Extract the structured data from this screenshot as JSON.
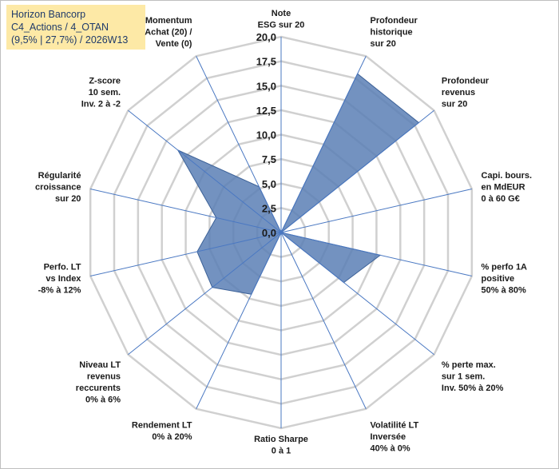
{
  "title": {
    "line1": "Horizon Bancorp",
    "line2": "C4_Actions / 4_OTAN",
    "line3": "(9,5% | 27,7%) / 2026W13"
  },
  "chart_data": {
    "type": "radar",
    "r_range": [
      0,
      20
    ],
    "ticks": [
      "0,0",
      "2,5",
      "5,0",
      "7,5",
      "10,0",
      "12,5",
      "15,0",
      "17,5",
      "20,0"
    ],
    "tick_values": [
      0,
      2.5,
      5,
      7.5,
      10,
      12.5,
      15,
      17.5,
      20
    ],
    "grid": true,
    "colors": {
      "fill": "#5a7fb5",
      "edge": "#3d6298",
      "grid": "#d0d0d0",
      "spoke": "#4a78c2"
    },
    "axes": [
      {
        "label": [
          "Note",
          "ESG sur 20"
        ],
        "value": 0
      },
      {
        "label": [
          "Profondeur",
          "historique",
          "sur 20"
        ],
        "value": 18
      },
      {
        "label": [
          "Profondeur",
          "revenus",
          "sur 20"
        ],
        "value": 18
      },
      {
        "label": [
          "Capi. bours.",
          "en MdEUR",
          "0 à 60 G€"
        ],
        "value": 0
      },
      {
        "label": [
          "% perfo 1A",
          "positive",
          "50% à 80%"
        ],
        "value": 10.4
      },
      {
        "label": [
          "% perte max.",
          "sur 1 sem.",
          "Inv. 50% à 20%"
        ],
        "value": 8.2
      },
      {
        "label": [
          "Volatilité LT",
          "Inversée",
          "40% à 0%"
        ],
        "value": 0
      },
      {
        "label": [
          "Ratio Sharpe",
          "0 à 1"
        ],
        "value": 0
      },
      {
        "label": [
          "Rendement LT",
          "0% à 20%"
        ],
        "value": 7.0
      },
      {
        "label": [
          "Niveau LT",
          "revenus",
          "reccurents",
          "0% à 6%"
        ],
        "value": 9.0
      },
      {
        "label": [
          "Perfo. LT",
          "vs Index",
          "-8% à 12%"
        ],
        "value": 8.8
      },
      {
        "label": [
          "Régularité",
          "croissance",
          "sur 20"
        ],
        "value": 6.8
      },
      {
        "label": [
          "Z-score",
          "10 sem.",
          "Inv. 2 à -2"
        ],
        "value": 13.5
      },
      {
        "label": [
          "Momentum",
          "Achat (20) /",
          "Vente (0)"
        ],
        "value": 5.2
      }
    ]
  }
}
